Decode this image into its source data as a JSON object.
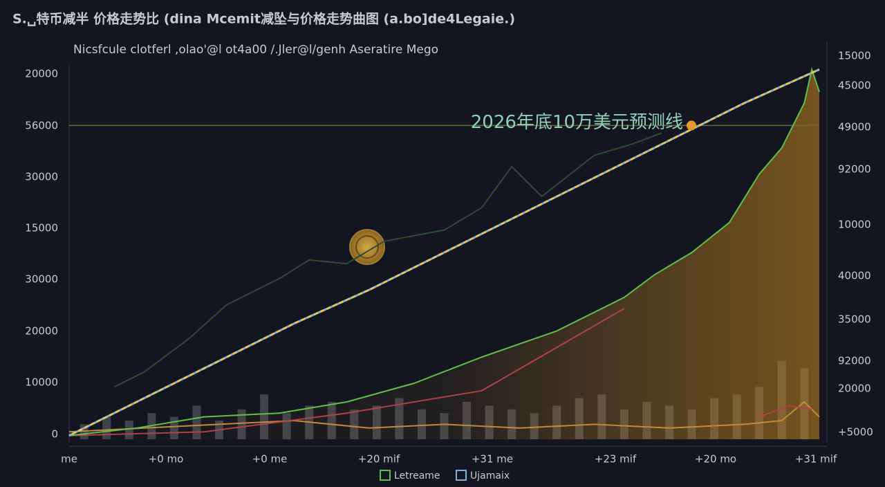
{
  "chart_data": {
    "type": "line",
    "title": "S.␣特币减半  价格走势比 (dina Mcemit减坠与价格走势曲图 (a.bo]de4Legaie.)",
    "subtitle": "Nicsfcule clotferl ,olao'@l ot4a00 /.Jler@l/genh  Aseratire Mego",
    "left_axis_labels": [
      "20000",
      "56000",
      "30000",
      "15000",
      "30000",
      "20000",
      "10000",
      "0"
    ],
    "right_axis_labels": [
      "15000",
      "45000",
      "49000",
      "92000",
      "10000",
      "40000",
      "35000",
      "92000",
      "20000",
      "+5000"
    ],
    "x_labels": [
      "me",
      "+0 mo",
      "+0 me",
      "+20 mif",
      "+31 me",
      "+23 mif",
      "+20 mo",
      "+31 mif"
    ],
    "xlim": [
      0,
      100
    ],
    "ylim": [
      0,
      100
    ],
    "annotation": {
      "text": "2026年底10万美元预测线",
      "value": 84
    },
    "series": [
      {
        "name": "Letreame",
        "color": "#5fbf4a",
        "x": [
          0,
          9,
          18,
          28,
          37,
          46,
          55,
          65,
          74,
          78,
          83,
          88,
          92,
          95,
          98,
          99,
          100
        ],
        "values": [
          1,
          3,
          6,
          7,
          10,
          15,
          22,
          29,
          38,
          44,
          50,
          58,
          71,
          78,
          90,
          99,
          93
        ]
      },
      {
        "name": "Ujamaix",
        "color": "#7fb2d6",
        "x": [
          0,
          10,
          20,
          30,
          40,
          50,
          60,
          70,
          80,
          90,
          100
        ],
        "values": [
          1,
          11,
          21,
          31,
          40,
          50,
          60,
          70,
          80,
          90,
          99
        ]
      },
      {
        "color": "#2f4a34",
        "x": [
          6,
          10,
          16,
          21,
          28,
          32,
          37,
          42,
          50,
          55,
          59,
          63,
          70,
          75,
          79
        ],
        "values": [
          14,
          18,
          27,
          36,
          43,
          48,
          47,
          53,
          56,
          62,
          73,
          65,
          76,
          79,
          82
        ]
      },
      {
        "color": "#b0404a",
        "x": [
          0,
          18,
          37,
          55,
          74,
          83,
          92,
          96,
          99
        ],
        "values": [
          1,
          2,
          7,
          13,
          35,
          null,
          6,
          9,
          8
        ]
      },
      {
        "color": "#c08a3a",
        "x": [
          0,
          10,
          20,
          30,
          40,
          50,
          60,
          70,
          80,
          90,
          95,
          98,
          100
        ],
        "values": [
          2,
          3,
          4,
          5,
          3,
          4,
          3,
          4,
          3,
          4,
          5,
          10,
          6
        ]
      }
    ],
    "volume": {
      "color": "#4a4d56",
      "x": [
        2,
        5,
        8,
        11,
        14,
        17,
        20,
        23,
        26,
        29,
        32,
        35,
        38,
        41,
        44,
        47,
        50,
        53,
        56,
        59,
        62,
        65,
        68,
        71,
        74,
        77,
        80,
        83,
        86,
        89,
        92,
        95,
        98
      ],
      "values": [
        4,
        6,
        5,
        7,
        6,
        9,
        5,
        8,
        12,
        7,
        9,
        10,
        8,
        9,
        11,
        8,
        7,
        10,
        9,
        8,
        7,
        9,
        11,
        12,
        8,
        10,
        9,
        8,
        11,
        12,
        14,
        21,
        19
      ]
    }
  }
}
